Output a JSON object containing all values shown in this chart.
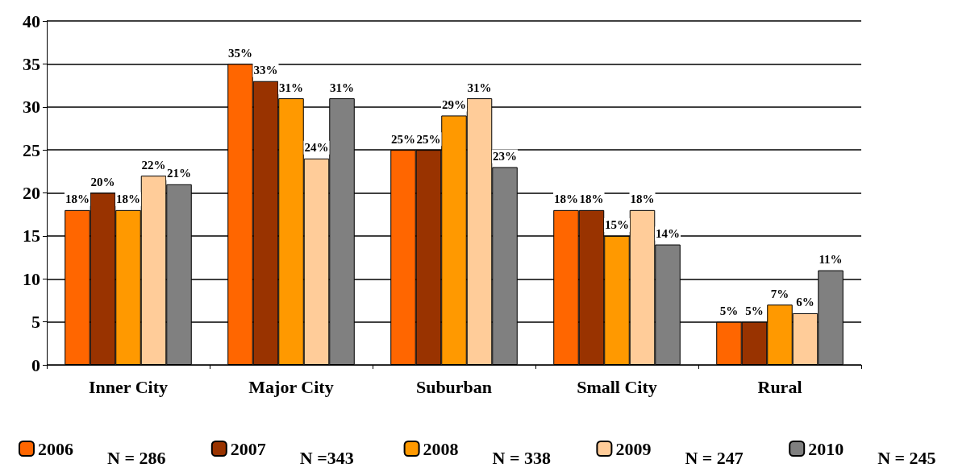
{
  "chart_data": {
    "type": "bar",
    "categories": [
      "Inner City",
      "Major City",
      "Suburban",
      "Small City",
      "Rural"
    ],
    "series": [
      {
        "name": "2006",
        "color": "#ff6600",
        "values": [
          18,
          35,
          25,
          18,
          5
        ],
        "value_labels": [
          "18%",
          "35%",
          "25%",
          "18%",
          "5%"
        ]
      },
      {
        "name": "2007",
        "color": "#993300",
        "values": [
          20,
          33,
          25,
          18,
          5
        ],
        "value_labels": [
          "20%",
          "33%",
          "25%",
          "18%",
          "5%"
        ]
      },
      {
        "name": "2008",
        "color": "#ff9900",
        "values": [
          18,
          31,
          29,
          15,
          7
        ],
        "value_labels": [
          "18%",
          "31%",
          "29%",
          "15%",
          "7%"
        ]
      },
      {
        "name": "2009",
        "color": "#ffcc99",
        "values": [
          22,
          24,
          31,
          18,
          6
        ],
        "value_labels": [
          "22%",
          "24%",
          "31%",
          "18%",
          "6%"
        ]
      },
      {
        "name": "2010",
        "color": "#808080",
        "values": [
          21,
          31,
          23,
          14,
          11
        ],
        "value_labels": [
          "21%",
          "31%",
          "23%",
          "14%",
          "11%"
        ]
      }
    ],
    "annotations": [
      "N = 286",
      "N =343",
      "N = 338",
      "N = 247",
      "N = 245"
    ],
    "ylim": [
      0,
      40
    ],
    "yticks": [
      0,
      5,
      10,
      15,
      20,
      25,
      30,
      35,
      40
    ],
    "grid": "y",
    "legend": "bottom"
  }
}
